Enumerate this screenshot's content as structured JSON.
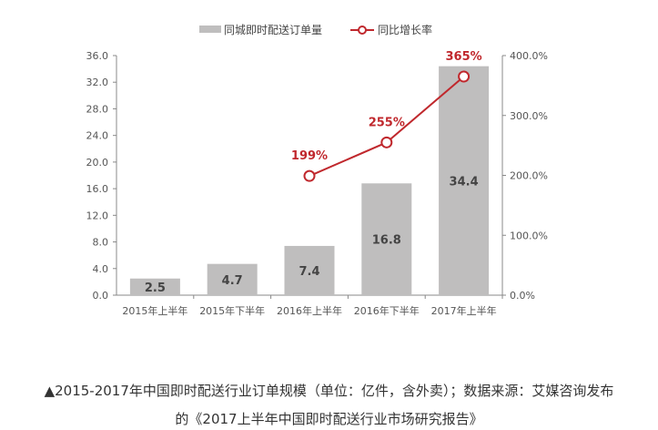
{
  "chart_data": {
    "type": "bar+line",
    "categories": [
      "2015年上半年",
      "2015年下半年",
      "2016年上半年",
      "2016年下半年",
      "2017年上半年"
    ],
    "series": [
      {
        "name": "同城即时配送订单量",
        "type": "bar",
        "axis": "left",
        "values": [
          2.5,
          4.7,
          7.4,
          16.8,
          34.4
        ],
        "labels": [
          "2.5",
          "4.7",
          "7.4",
          "16.8",
          "34.4"
        ],
        "color": "#bfbebe"
      },
      {
        "name": "同比增长率",
        "type": "line",
        "axis": "right",
        "values": [
          null,
          null,
          199,
          255,
          365
        ],
        "labels": [
          "",
          "",
          "199%",
          "255%",
          "365%"
        ],
        "color": "#c0282d"
      }
    ],
    "yleft": {
      "range": [
        0,
        36
      ],
      "ticks": [
        "0.0",
        "4.0",
        "8.0",
        "12.0",
        "16.0",
        "20.0",
        "24.0",
        "28.0",
        "32.0",
        "36.0"
      ]
    },
    "yright": {
      "range": [
        0,
        400
      ],
      "ticks": [
        "0.0%",
        "100.0%",
        "200.0%",
        "300.0%",
        "400.0%"
      ]
    },
    "legend": "top",
    "grid": false
  },
  "caption": {
    "line1": "▲2015-2017年中国即时配送行业订单规模（单位：亿件，含外卖）；数据来源：艾媒咨询发布",
    "line2": "的《2017上半年中国即时配送行业市场研究报告》"
  }
}
